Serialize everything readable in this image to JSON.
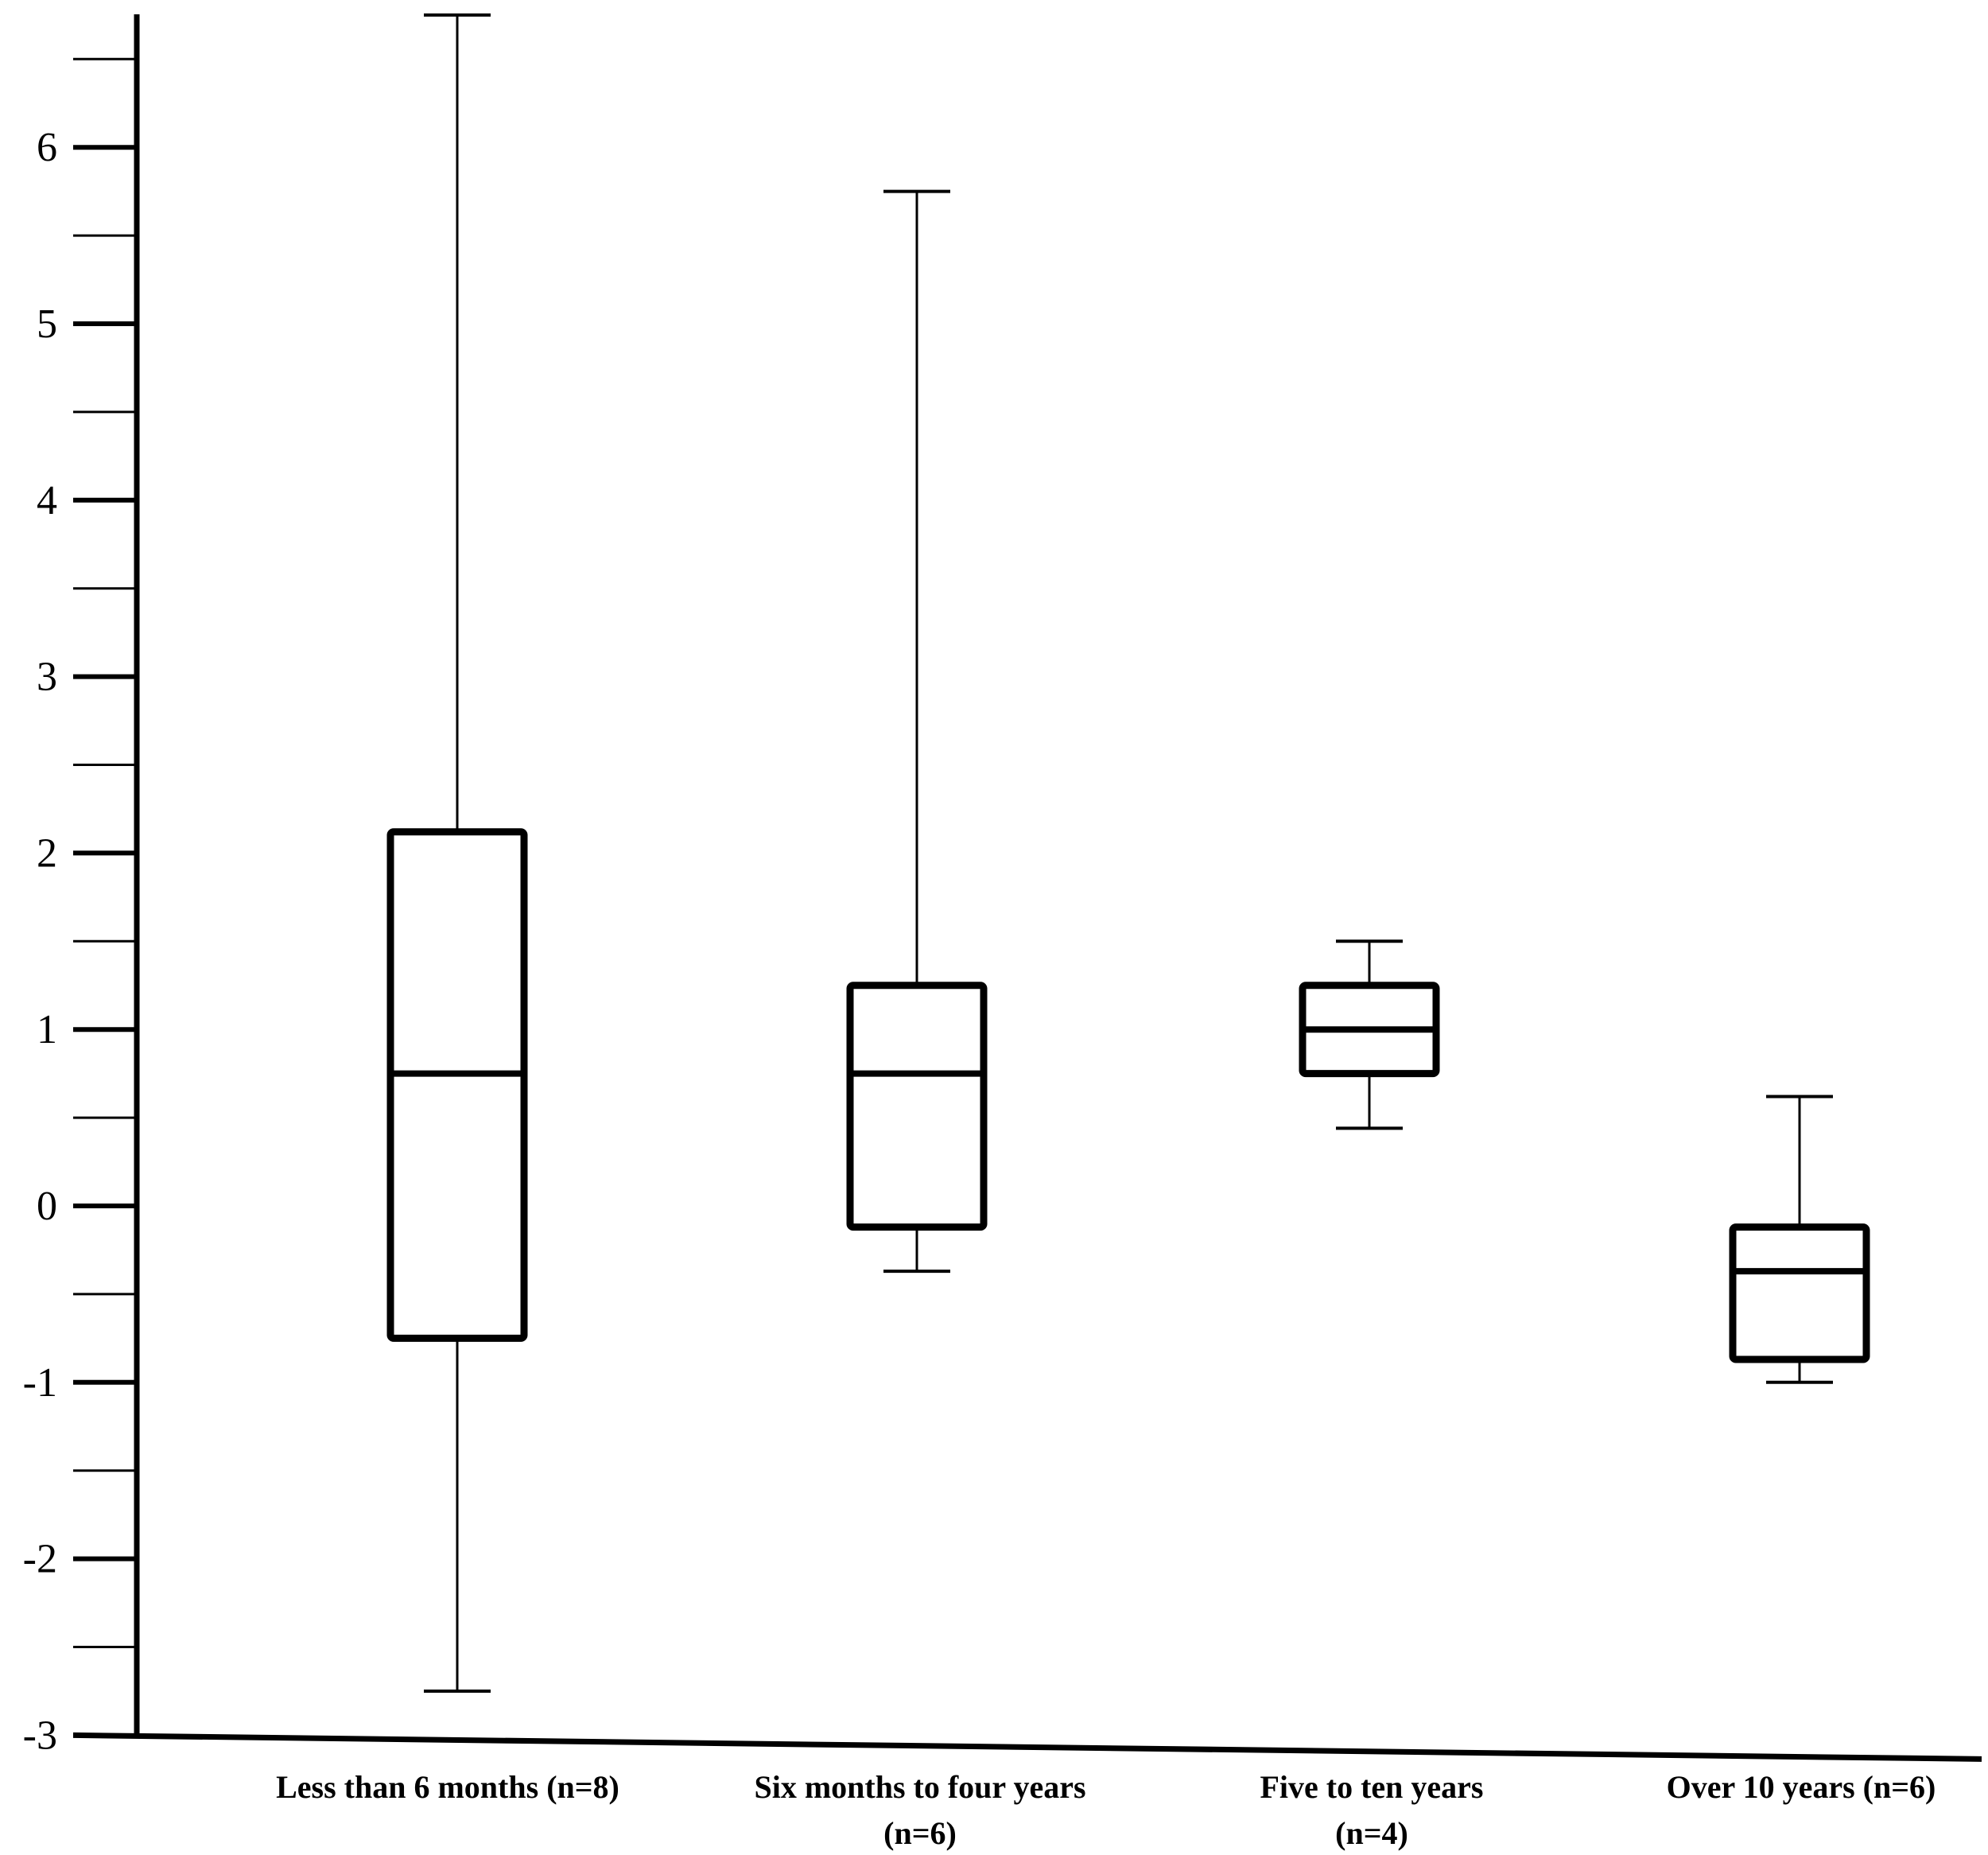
{
  "chart_data": {
    "type": "boxplot",
    "title": "",
    "xlabel": "",
    "ylabel": "",
    "ylim": [
      -3,
      6.75
    ],
    "yticks": [
      -3,
      -2,
      -1,
      0,
      1,
      2,
      3,
      4,
      5,
      6
    ],
    "ytick_labels": [
      "-3",
      "-2",
      "-1",
      "0",
      "1",
      "2",
      "3",
      "4",
      "5",
      "6"
    ],
    "minor_tick_step": 0.5,
    "grid": false,
    "legend": "none",
    "colors": {
      "stroke": "#000000",
      "background": "#ffffff"
    },
    "categories": [
      {
        "label_lines": [
          "Less than  6 months  (n=8)"
        ],
        "min": -2.75,
        "q1": -0.75,
        "median": 0.75,
        "q3": 2.12,
        "max": 6.75
      },
      {
        "label_lines": [
          "Six months  to  four  years",
          "(n=6)"
        ],
        "min": -0.37,
        "q1": -0.12,
        "median": 0.75,
        "q3": 1.25,
        "max": 5.75
      },
      {
        "label_lines": [
          "Five  to  ten  years",
          "(n=4)"
        ],
        "min": 0.44,
        "q1": 0.75,
        "median": 1.0,
        "q3": 1.25,
        "max": 1.5
      },
      {
        "label_lines": [
          "Over  10  years  (n=6)"
        ],
        "min": -1.0,
        "q1": -0.87,
        "median": -0.37,
        "q3": -0.12,
        "max": 0.62
      }
    ]
  }
}
